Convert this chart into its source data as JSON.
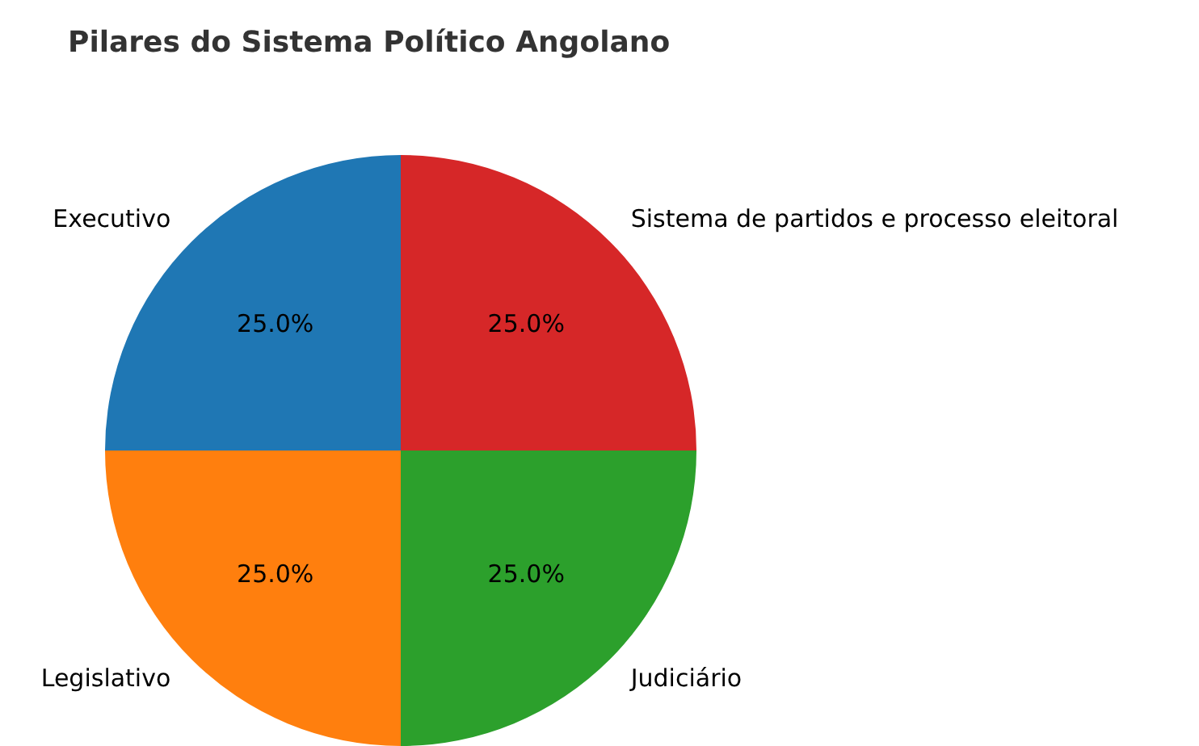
{
  "chart_data": {
    "type": "pie",
    "title": "Pilares do Sistema Político Angolano",
    "categories": [
      "Sistema de partidos e processo eleitoral",
      "Judiciário",
      "Legislativo",
      "Executivo"
    ],
    "values": [
      25,
      25,
      25,
      25
    ],
    "colors": [
      "#d62728",
      "#2ca02c",
      "#ff7f0e",
      "#1f77b4"
    ],
    "value_labels": [
      "25.0%",
      "25.0%",
      "25.0%",
      "25.0%"
    ],
    "legend": false
  }
}
